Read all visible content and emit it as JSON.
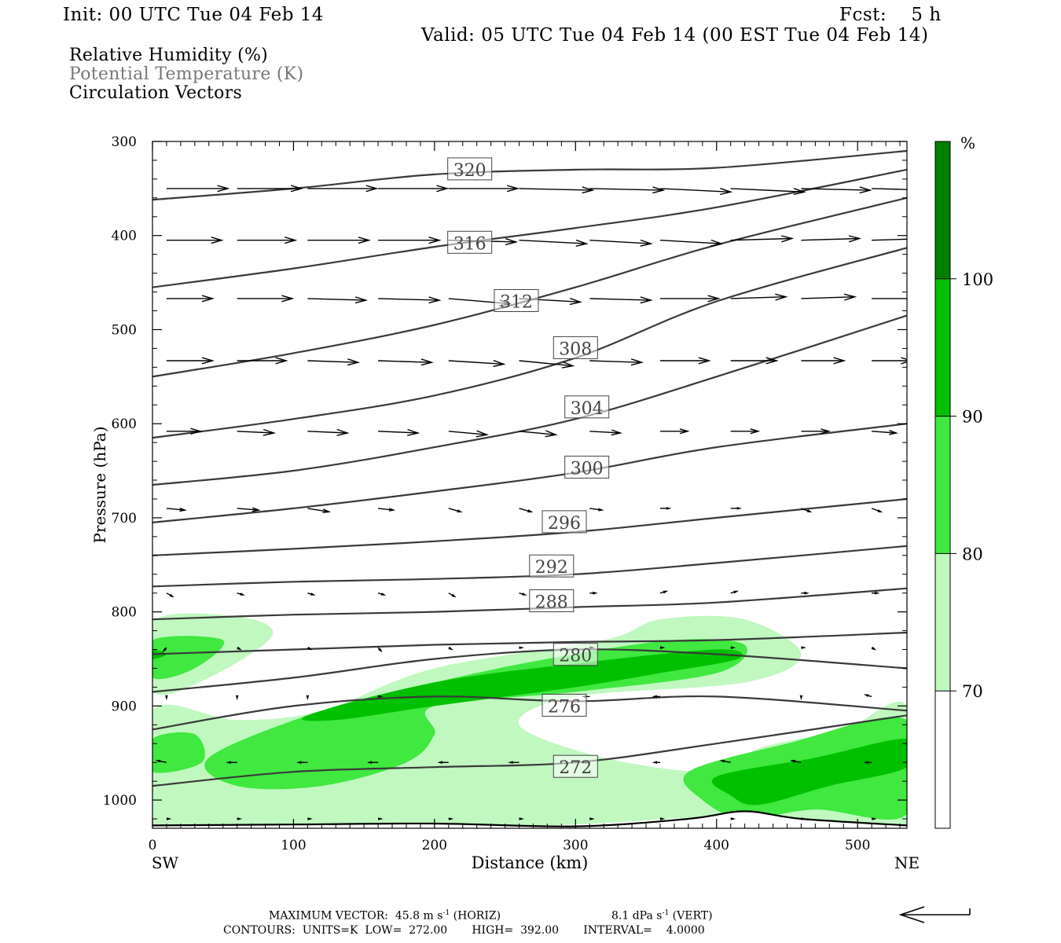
{
  "header": {
    "init": "Init: 00 UTC Tue 04 Feb 14",
    "fcst": "Fcst:    5 h",
    "valid": "Valid: 05 UTC Tue 04 Feb 14 (00 EST Tue 04 Feb 14)"
  },
  "fields": [
    {
      "label": "Relative Humidity (%)",
      "color": "#000000"
    },
    {
      "label": "Potential Temperature (K)",
      "color": "#777777"
    },
    {
      "label": "Circulation Vectors",
      "color": "#000000"
    }
  ],
  "colorbar": {
    "unit": "%",
    "levels": [
      70,
      80,
      90,
      100
    ],
    "colors": [
      "#ffffff",
      "#c0f8c0",
      "#40e840",
      "#00c000",
      "#008000"
    ]
  },
  "footer": {
    "max_vector": "MAXIMUM VECTOR:  45.8 m s",
    "horiz": " (HORIZ)",
    "vert_value": "8.1 dPa s",
    "vert": " (VERT)",
    "exponent": "-1",
    "contours": "CONTOURS:  UNITS=K  LOW=  272.00       HIGH=  392.00       INTERVAL=    4.0000"
  },
  "chart_data": {
    "type": "cross-section",
    "xlabel": "Distance (km)",
    "ylabel": "Pressure (hPa)",
    "xlim": [
      0,
      535
    ],
    "ylim": [
      1030,
      300
    ],
    "x_ticks": [
      0,
      100,
      200,
      300,
      400,
      500
    ],
    "y_ticks": [
      300,
      400,
      500,
      600,
      700,
      800,
      900,
      1000
    ],
    "x_endpoints": {
      "left": "SW",
      "right": "NE"
    },
    "isentropes": [
      {
        "theta": 320,
        "x": [
          0,
          100,
          200,
          300,
          400,
          535
        ],
        "p": [
          362,
          350,
          335,
          330,
          328,
          310
        ]
      },
      {
        "theta": 316,
        "x": [
          0,
          100,
          200,
          300,
          400,
          535
        ],
        "p": [
          455,
          435,
          412,
          392,
          370,
          330
        ]
      },
      {
        "theta": 312,
        "x": [
          0,
          100,
          200,
          300,
          400,
          535
        ],
        "p": [
          550,
          525,
          495,
          455,
          410,
          360
        ]
      },
      {
        "theta": 308,
        "x": [
          0,
          100,
          200,
          300,
          400,
          535
        ],
        "p": [
          615,
          595,
          570,
          530,
          470,
          413
        ]
      },
      {
        "theta": 304,
        "x": [
          0,
          100,
          200,
          300,
          400,
          535
        ],
        "p": [
          665,
          650,
          625,
          595,
          550,
          485
        ]
      },
      {
        "theta": 300,
        "x": [
          0,
          100,
          200,
          300,
          400,
          535
        ],
        "p": [
          705,
          690,
          672,
          652,
          625,
          600
        ]
      },
      {
        "theta": 296,
        "x": [
          0,
          100,
          200,
          300,
          400,
          535
        ],
        "p": [
          740,
          733,
          725,
          715,
          700,
          680
        ]
      },
      {
        "theta": 292,
        "x": [
          0,
          100,
          200,
          300,
          400,
          535
        ],
        "p": [
          773,
          768,
          765,
          760,
          748,
          730
        ]
      },
      {
        "theta": 288,
        "x": [
          0,
          100,
          200,
          300,
          400,
          535
        ],
        "p": [
          808,
          803,
          800,
          795,
          790,
          775
        ]
      },
      {
        "theta": 284,
        "x": [
          0,
          100,
          200,
          300,
          400,
          535
        ],
        "p": [
          845,
          840,
          835,
          832,
          830,
          822
        ]
      },
      {
        "theta": 280,
        "x": [
          0,
          100,
          200,
          300,
          400,
          535
        ],
        "p": [
          885,
          870,
          850,
          840,
          845,
          860
        ]
      },
      {
        "theta": 276,
        "x": [
          0,
          100,
          200,
          300,
          400,
          535
        ],
        "p": [
          925,
          900,
          890,
          895,
          890,
          905
        ]
      },
      {
        "theta": 272,
        "x": [
          0,
          100,
          200,
          300,
          400,
          535
        ],
        "p": [
          985,
          970,
          965,
          960,
          940,
          910
        ]
      }
    ],
    "contour_labels": [
      {
        "theta": 320,
        "x": 225,
        "p": 330
      },
      {
        "theta": 316,
        "x": 225,
        "p": 408
      },
      {
        "theta": 312,
        "x": 258,
        "p": 470
      },
      {
        "theta": 308,
        "x": 300,
        "p": 520
      },
      {
        "theta": 304,
        "x": 308,
        "p": 583
      },
      {
        "theta": 300,
        "x": 308,
        "p": 647
      },
      {
        "theta": 296,
        "x": 292,
        "p": 705
      },
      {
        "theta": 292,
        "x": 283,
        "p": 752
      },
      {
        "theta": 288,
        "x": 283,
        "p": 789
      },
      {
        "theta": 280,
        "x": 300,
        "p": 846
      },
      {
        "theta": 276,
        "x": 292,
        "p": 900
      },
      {
        "theta": 272,
        "x": 300,
        "p": 965
      }
    ],
    "surface_p": [
      [
        0,
        1027
      ],
      [
        100,
        1026
      ],
      [
        200,
        1025
      ],
      [
        300,
        1028
      ],
      [
        380,
        1020
      ],
      [
        420,
        1012
      ],
      [
        460,
        1020
      ],
      [
        535,
        1027
      ]
    ],
    "rh_regions": [
      {
        "level": 70,
        "points": [
          [
            0,
            810
          ],
          [
            60,
            805
          ],
          [
            85,
            825
          ],
          [
            40,
            870
          ],
          [
            0,
            885
          ]
        ]
      },
      {
        "level": 70,
        "points": [
          [
            120,
            905
          ],
          [
            200,
            860
          ],
          [
            320,
            830
          ],
          [
            360,
            808
          ],
          [
            420,
            808
          ],
          [
            460,
            845
          ],
          [
            420,
            875
          ],
          [
            300,
            890
          ],
          [
            260,
            920
          ],
          [
            320,
            955
          ],
          [
            400,
            970
          ],
          [
            430,
            945
          ],
          [
            490,
            925
          ],
          [
            535,
            900
          ],
          [
            535,
            1028
          ],
          [
            440,
            1028
          ],
          [
            400,
            1018
          ],
          [
            300,
            1026
          ],
          [
            200,
            1028
          ],
          [
            100,
            1026
          ],
          [
            0,
            1028
          ],
          [
            0,
            905
          ],
          [
            60,
            915
          ]
        ]
      },
      {
        "level": 80,
        "points": [
          [
            0,
            830
          ],
          [
            50,
            830
          ],
          [
            30,
            860
          ],
          [
            0,
            870
          ]
        ]
      },
      {
        "level": 80,
        "points": [
          [
            40,
            955
          ],
          [
            120,
            905
          ],
          [
            200,
            875
          ],
          [
            280,
            850
          ],
          [
            370,
            830
          ],
          [
            420,
            835
          ],
          [
            400,
            865
          ],
          [
            300,
            885
          ],
          [
            200,
            900
          ],
          [
            200,
            930
          ],
          [
            180,
            960
          ],
          [
            120,
            985
          ],
          [
            60,
            985
          ]
        ]
      },
      {
        "level": 80,
        "points": [
          [
            0,
            935
          ],
          [
            30,
            930
          ],
          [
            35,
            960
          ],
          [
            0,
            970
          ]
        ]
      },
      {
        "level": 80,
        "points": [
          [
            380,
            970
          ],
          [
            450,
            940
          ],
          [
            535,
            915
          ],
          [
            535,
            1015
          ],
          [
            470,
            1010
          ],
          [
            420,
            1020
          ],
          [
            390,
            1000
          ]
        ]
      },
      {
        "level": 90,
        "points": [
          [
            110,
            910
          ],
          [
            200,
            875
          ],
          [
            300,
            855
          ],
          [
            400,
            840
          ],
          [
            415,
            850
          ],
          [
            360,
            865
          ],
          [
            300,
            880
          ],
          [
            200,
            900
          ],
          [
            130,
            915
          ]
        ]
      },
      {
        "level": 90,
        "points": [
          [
            0,
            840
          ],
          [
            10,
            845
          ],
          [
            0,
            850
          ]
        ]
      },
      {
        "level": 90,
        "points": [
          [
            400,
            975
          ],
          [
            470,
            955
          ],
          [
            535,
            935
          ],
          [
            535,
            965
          ],
          [
            480,
            985
          ],
          [
            430,
            1005
          ],
          [
            410,
            995
          ]
        ]
      }
    ],
    "vectors": {
      "x": [
        10,
        60,
        110,
        160,
        210,
        260,
        310,
        360,
        410,
        460,
        510
      ],
      "levels": [
        {
          "p": 350,
          "u": [
            40,
            42,
            45,
            45,
            45,
            48,
            48,
            46,
            48,
            45,
            40
          ],
          "w": [
            0,
            0,
            0,
            0,
            0,
            1,
            1,
            2,
            2,
            1,
            1
          ]
        },
        {
          "p": 405,
          "u": [
            36,
            38,
            40,
            40,
            44,
            44,
            40,
            40,
            40,
            38,
            38
          ],
          "w": [
            0,
            0,
            0,
            0,
            1,
            2,
            2,
            2,
            -1,
            -1,
            -1
          ]
        },
        {
          "p": 467,
          "u": [
            30,
            36,
            38,
            40,
            40,
            40,
            40,
            38,
            36,
            35,
            34
          ],
          "w": [
            0,
            0,
            1,
            1,
            3,
            2,
            1,
            0,
            -1,
            -1,
            0
          ]
        },
        {
          "p": 533,
          "u": [
            30,
            32,
            33,
            35,
            36,
            35,
            34,
            32,
            30,
            28,
            26
          ],
          "w": [
            0,
            0,
            1,
            1,
            2,
            3,
            1,
            0,
            0,
            0,
            0
          ]
        },
        {
          "p": 608,
          "u": [
            22,
            24,
            26,
            26,
            25,
            24,
            20,
            18,
            18,
            18,
            16
          ],
          "w": [
            0,
            1,
            1,
            1,
            2,
            2,
            1,
            0,
            0,
            0,
            1
          ]
        },
        {
          "p": 690,
          "u": [
            12,
            14,
            14,
            10,
            8,
            8,
            8,
            6,
            6,
            6,
            6
          ],
          "w": [
            1,
            1,
            2,
            1,
            2,
            2,
            1,
            0,
            0,
            2,
            2
          ]
        },
        {
          "p": 780,
          "u": [
            4,
            4,
            4,
            4,
            4,
            4,
            4,
            4,
            4,
            4,
            4
          ],
          "w": [
            2,
            1,
            1,
            1,
            2,
            1,
            0,
            -1,
            -1,
            0,
            0
          ]
        },
        {
          "p": 838,
          "u": [
            -2,
            2,
            2,
            2,
            2,
            2,
            2,
            2,
            2,
            2,
            2
          ],
          "w": [
            2,
            1,
            1,
            2,
            1,
            0,
            0,
            0,
            0,
            0,
            1
          ]
        },
        {
          "p": 890,
          "u": [
            0,
            0,
            0,
            2,
            0,
            0,
            -4,
            -4,
            0,
            0,
            -4
          ],
          "w": [
            1,
            1,
            1,
            0,
            0,
            0,
            0,
            0,
            0,
            1,
            -1
          ]
        },
        {
          "p": 960,
          "u": [
            -6,
            -6,
            -6,
            -6,
            -6,
            -6,
            -4,
            -4,
            -6,
            -6,
            -4
          ],
          "w": [
            -1,
            0,
            0,
            0,
            0,
            0,
            0,
            0,
            -1,
            -1,
            0
          ]
        },
        {
          "p": 1020,
          "u": [
            2,
            2,
            2,
            2,
            2,
            2,
            2,
            2,
            2,
            2,
            2
          ],
          "w": [
            0,
            0,
            0,
            0,
            0,
            0,
            0,
            0,
            0,
            0,
            0
          ]
        }
      ]
    }
  }
}
